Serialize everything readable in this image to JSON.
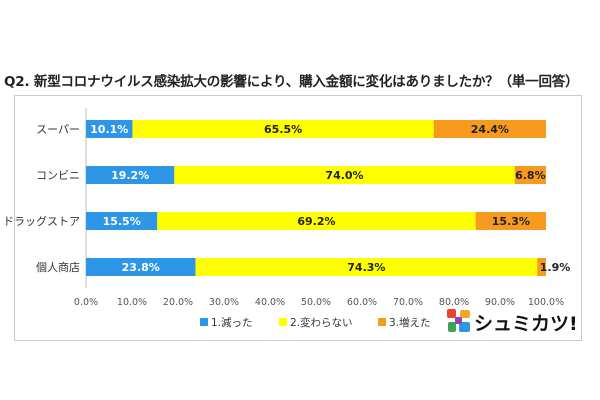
{
  "title": "Q2. 新型コロナウイルス感染拡大の影響により、購入金額に変化はありましたか？（単一回答）",
  "logo_text": "シュミカツ!",
  "chart_data": {
    "type": "bar",
    "orientation": "horizontal",
    "stacked": true,
    "percent": true,
    "categories": [
      "スーパー",
      "コンビニ",
      "ドラッグストア",
      "個人商店"
    ],
    "series": [
      {
        "name": "1.減った",
        "color": "#2e96e6",
        "label_color": "#ffffff",
        "values": [
          10.1,
          19.2,
          15.5,
          23.8
        ]
      },
      {
        "name": "2.変わらない",
        "color": "#ffff00",
        "label_color": "#222222",
        "values": [
          65.5,
          74.0,
          69.2,
          74.3
        ]
      },
      {
        "name": "3.増えた",
        "color": "#f79a1e",
        "label_color": "#222222",
        "values": [
          24.4,
          6.8,
          15.3,
          1.9
        ]
      }
    ],
    "xlim": [
      0,
      100
    ],
    "xticks": [
      "0.0%",
      "10.0%",
      "20.0%",
      "30.0%",
      "40.0%",
      "50.0%",
      "60.0%",
      "70.0%",
      "80.0%",
      "90.0%",
      "100.0%"
    ],
    "grid": false,
    "legend_position": "bottom"
  }
}
